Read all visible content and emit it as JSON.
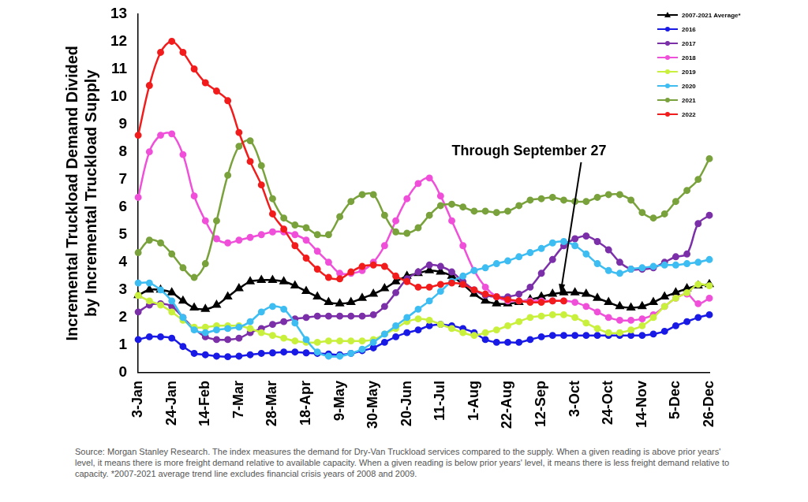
{
  "chart_data": {
    "type": "line",
    "y_label": [
      "Incremental Truckload Demand Divided",
      "by Incremental Truckload Supply"
    ],
    "annotation": "Through September 27",
    "caption": "Source: Morgan Stanley Research. The index measures the demand for Dry-Van Truckload services compared to the supply. When a given reading is above prior years' level, it means there is more freight demand relative to available capacity. When a given reading is below prior years' level, it means there is less freight demand relative to capacity. *2007-2021 average trend line excludes financial crisis years of 2008 and 2009.",
    "x": [
      "3-Jan",
      null,
      null,
      "24-Jan",
      null,
      null,
      "14-Feb",
      null,
      null,
      "7-Mar",
      null,
      null,
      "28-Mar",
      null,
      null,
      "18-Apr",
      null,
      null,
      "9-May",
      null,
      null,
      "30-May",
      null,
      null,
      "20-Jun",
      null,
      null,
      "11-Jul",
      null,
      null,
      "1-Aug",
      null,
      null,
      "22-Aug",
      null,
      null,
      "12-Sep",
      null,
      null,
      "3-Oct",
      null,
      null,
      "24-Oct",
      null,
      null,
      "14-Nov",
      null,
      null,
      "5-Dec",
      null,
      null,
      "26-Dec"
    ],
    "ylim": [
      0,
      13
    ],
    "yticks": [
      0,
      1,
      2,
      3,
      4,
      5,
      6,
      7,
      8,
      9,
      10,
      11,
      12,
      13
    ],
    "grid": false,
    "legend": "upper right",
    "series": [
      {
        "name": "2007-2021 Average*",
        "color": "#000000",
        "marker": "triangle",
        "line_style": "solid",
        "values": [
          2.8,
          3.0,
          3.0,
          2.9,
          2.6,
          2.35,
          2.3,
          2.45,
          2.75,
          3.05,
          3.3,
          3.35,
          3.35,
          3.3,
          3.15,
          2.95,
          2.75,
          2.55,
          2.5,
          2.55,
          2.7,
          2.85,
          3.05,
          3.3,
          3.5,
          3.6,
          3.7,
          3.65,
          3.5,
          3.2,
          2.85,
          2.6,
          2.5,
          2.5,
          2.55,
          2.65,
          2.75,
          2.85,
          2.9,
          2.9,
          2.85,
          2.7,
          2.55,
          2.4,
          2.35,
          2.4,
          2.55,
          2.75,
          2.9,
          3.05,
          3.15,
          3.2
        ]
      },
      {
        "name": "2016",
        "color": "#1a1ae6",
        "marker": "circle",
        "line_style": "solid",
        "values": [
          1.2,
          1.3,
          1.3,
          1.25,
          0.95,
          0.7,
          0.65,
          0.6,
          0.58,
          0.6,
          0.65,
          0.7,
          0.72,
          0.75,
          0.75,
          0.72,
          0.7,
          0.68,
          0.65,
          0.7,
          0.8,
          0.9,
          1.1,
          1.3,
          1.45,
          1.55,
          1.7,
          1.75,
          1.7,
          1.6,
          1.45,
          1.2,
          1.1,
          1.1,
          1.1,
          1.2,
          1.3,
          1.35,
          1.35,
          1.35,
          1.35,
          1.35,
          1.35,
          1.35,
          1.35,
          1.35,
          1.4,
          1.5,
          1.7,
          1.85,
          2.0,
          2.1
        ]
      },
      {
        "name": "2017",
        "color": "#7b2fa8",
        "marker": "circle",
        "line_style": "solid",
        "values": [
          2.2,
          2.45,
          2.5,
          2.4,
          2.0,
          1.6,
          1.3,
          1.2,
          1.2,
          1.25,
          1.45,
          1.6,
          1.75,
          1.85,
          1.95,
          2.0,
          2.05,
          2.05,
          2.05,
          2.05,
          2.05,
          2.1,
          2.4,
          2.9,
          3.4,
          3.65,
          3.9,
          3.85,
          3.65,
          3.3,
          3.0,
          2.8,
          2.75,
          2.75,
          2.85,
          3.1,
          3.6,
          4.1,
          4.6,
          4.85,
          4.95,
          4.75,
          4.45,
          4.0,
          3.75,
          3.75,
          3.8,
          4.0,
          4.2,
          4.3,
          5.4,
          5.7
        ]
      },
      {
        "name": "2018",
        "color": "#f04fd9",
        "marker": "circle",
        "line_style": "solid",
        "values": [
          6.35,
          8.0,
          8.6,
          8.65,
          7.9,
          6.4,
          5.5,
          4.85,
          4.7,
          4.8,
          4.9,
          5.0,
          5.1,
          5.1,
          5.0,
          4.8,
          4.4,
          4.0,
          3.6,
          3.6,
          3.7,
          4.0,
          4.6,
          5.5,
          6.3,
          6.85,
          7.05,
          6.4,
          5.5,
          4.6,
          3.7,
          3.1,
          2.75,
          2.6,
          2.6,
          2.6,
          2.6,
          2.6,
          2.6,
          2.55,
          2.4,
          2.2,
          2.0,
          1.9,
          1.9,
          1.95,
          2.1,
          2.4,
          2.7,
          2.85,
          2.5,
          2.7
        ]
      },
      {
        "name": "2019",
        "color": "#c8f03c",
        "marker": "circle",
        "line_style": "solid",
        "values": [
          2.8,
          2.6,
          2.45,
          2.2,
          1.9,
          1.65,
          1.65,
          1.7,
          1.7,
          1.7,
          1.6,
          1.45,
          1.35,
          1.25,
          1.15,
          1.1,
          1.1,
          1.15,
          1.15,
          1.15,
          1.15,
          1.2,
          1.4,
          1.6,
          1.85,
          1.95,
          1.9,
          1.75,
          1.6,
          1.45,
          1.35,
          1.45,
          1.55,
          1.7,
          1.85,
          2.0,
          2.05,
          2.1,
          2.1,
          2.0,
          1.8,
          1.6,
          1.45,
          1.45,
          1.55,
          1.7,
          2.0,
          2.4,
          2.7,
          2.9,
          3.2,
          3.15
        ]
      },
      {
        "name": "2020",
        "color": "#3dbdf2",
        "marker": "circle",
        "line_style": "solid",
        "values": [
          3.25,
          3.25,
          3.0,
          2.6,
          2.0,
          1.55,
          1.45,
          1.55,
          1.6,
          1.65,
          1.85,
          2.2,
          2.4,
          2.3,
          1.8,
          1.2,
          0.75,
          0.6,
          0.6,
          0.7,
          0.85,
          1.1,
          1.4,
          1.7,
          2.0,
          2.3,
          2.6,
          2.95,
          3.3,
          3.5,
          3.7,
          3.8,
          3.95,
          4.05,
          4.2,
          4.35,
          4.5,
          4.7,
          4.75,
          4.6,
          4.3,
          3.95,
          3.7,
          3.6,
          3.75,
          3.8,
          3.85,
          3.9,
          3.9,
          3.95,
          4.0,
          4.1
        ]
      },
      {
        "name": "2021",
        "color": "#7aa23c",
        "marker": "circle",
        "line_style": "solid",
        "values": [
          4.35,
          4.8,
          4.7,
          4.3,
          3.8,
          3.45,
          3.95,
          5.5,
          7.15,
          8.2,
          8.4,
          7.5,
          6.3,
          5.6,
          5.35,
          5.25,
          5.0,
          5.0,
          5.65,
          6.2,
          6.45,
          6.45,
          5.7,
          5.1,
          5.05,
          5.25,
          5.7,
          6.05,
          6.1,
          6.0,
          5.85,
          5.85,
          5.8,
          5.85,
          6.05,
          6.25,
          6.3,
          6.35,
          6.25,
          6.2,
          6.2,
          6.35,
          6.45,
          6.45,
          6.25,
          5.8,
          5.6,
          5.75,
          6.2,
          6.6,
          7.0,
          7.75
        ]
      },
      {
        "name": "2022",
        "color": "#f21c1c",
        "marker": "circle",
        "line_style": "solid",
        "values": [
          8.6,
          10.4,
          11.6,
          12.0,
          11.6,
          11.0,
          10.5,
          10.2,
          9.85,
          8.7,
          7.65,
          6.8,
          5.75,
          5.2,
          4.6,
          4.15,
          3.75,
          3.45,
          3.4,
          3.65,
          3.85,
          3.9,
          3.85,
          3.5,
          3.3,
          3.1,
          3.1,
          3.2,
          3.25,
          3.2,
          3.0,
          2.85,
          2.75,
          2.65,
          2.6,
          2.55,
          2.55,
          2.6,
          2.6,
          null,
          null,
          null,
          null,
          null,
          null,
          null,
          null,
          null,
          null,
          null,
          null,
          null
        ]
      }
    ]
  }
}
